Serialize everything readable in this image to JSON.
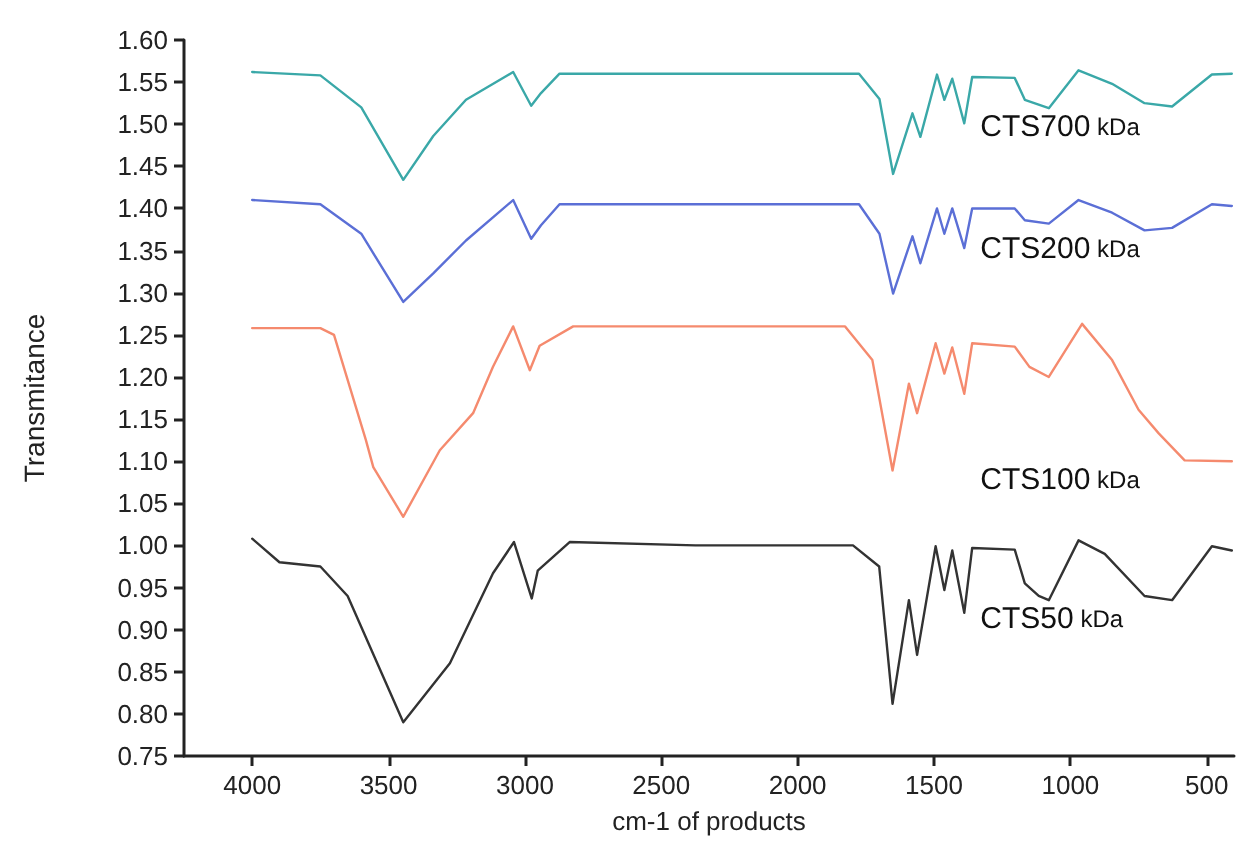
{
  "chart_data": {
    "type": "line",
    "xlabel": "cm-1 of products",
    "ylabel": "Transmitance",
    "xlim": [
      4250,
      400
    ],
    "xticks": [
      4000,
      3500,
      3000,
      2500,
      2000,
      1500,
      1000,
      500
    ],
    "ylim": [
      0.75,
      1.6
    ],
    "yticks": [
      0.75,
      {
        "value": 0.8,
        "label": "0.80"
      },
      0.85,
      {
        "value": 0.9,
        "label": "0.90"
      },
      0.95,
      {
        "value": 1.0,
        "label": "1.00"
      },
      1.05,
      {
        "value": 1.1,
        "label": "1.10"
      },
      1.15,
      {
        "value": 1.2,
        "label": "1.20"
      },
      1.25,
      {
        "value": 1.3,
        "label": "1.30"
      },
      1.35,
      {
        "value": 1.4,
        "label": "1.40"
      },
      1.45,
      {
        "value": 1.5,
        "label": "1.50"
      },
      1.55,
      {
        "value": 1.6,
        "label": "1.60"
      }
    ],
    "grid": false,
    "legend": false,
    "marker": "none",
    "line_style": "solid",
    "series": [
      {
        "name": "CTS700 kDa",
        "color": "#3aa8a8",
        "x": [
          4000,
          3750,
          3600,
          3446,
          3336,
          3216,
          3043,
          2977,
          2941,
          2873,
          2375,
          1775,
          1700,
          1650,
          1579,
          1550,
          1489,
          1462,
          1433,
          1389,
          1360,
          1204,
          1167,
          1079,
          970,
          847,
          728,
          627,
          481,
          408
        ],
        "values": [
          1.562,
          1.558,
          1.52,
          1.434,
          1.486,
          1.529,
          1.562,
          1.522,
          1.537,
          1.56,
          1.56,
          1.56,
          1.53,
          1.441,
          1.513,
          1.485,
          1.559,
          1.529,
          1.554,
          1.501,
          1.556,
          1.555,
          1.529,
          1.519,
          1.564,
          1.548,
          1.525,
          1.521,
          1.559,
          1.56
        ]
      },
      {
        "name": "CTS200 kDa",
        "color": "#5b6fd6",
        "x": [
          4000,
          3750,
          3600,
          3446,
          3336,
          3216,
          3043,
          2977,
          2941,
          2873,
          2375,
          1775,
          1700,
          1650,
          1579,
          1550,
          1489,
          1462,
          1433,
          1389,
          1360,
          1204,
          1167,
          1079,
          970,
          847,
          728,
          627,
          481,
          408
        ],
        "values": [
          1.41,
          1.405,
          1.37,
          1.289,
          1.323,
          1.362,
          1.41,
          1.364,
          1.38,
          1.405,
          1.405,
          1.405,
          1.37,
          1.299,
          1.367,
          1.335,
          1.4,
          1.37,
          1.4,
          1.353,
          1.4,
          1.4,
          1.386,
          1.382,
          1.41,
          1.395,
          1.374,
          1.377,
          1.405,
          1.403
        ]
      },
      {
        "name": "CTS100 kDa",
        "color": "#f58a6e",
        "x": [
          4000,
          3750,
          3700,
          3583,
          3556,
          3446,
          3312,
          3190,
          3117,
          3043,
          2982,
          2946,
          2823,
          1826,
          1726,
          1652,
          1592,
          1562,
          1494,
          1462,
          1433,
          1389,
          1360,
          1204,
          1150,
          1079,
          957,
          847,
          750,
          676,
          581,
          408
        ],
        "values": [
          1.258,
          1.258,
          1.25,
          1.125,
          1.093,
          1.034,
          1.113,
          1.157,
          1.212,
          1.26,
          1.208,
          1.237,
          1.26,
          1.26,
          1.22,
          1.089,
          1.192,
          1.157,
          1.24,
          1.204,
          1.235,
          1.18,
          1.24,
          1.236,
          1.212,
          1.2,
          1.263,
          1.22,
          1.161,
          1.133,
          1.101,
          1.1
        ]
      },
      {
        "name": "CTS50 kDa",
        "color": "#333333",
        "x": [
          4000,
          3900,
          3750,
          3650,
          3446,
          3275,
          3117,
          3040,
          2975,
          2953,
          2836,
          2375,
          1797,
          1701,
          1652,
          1592,
          1562,
          1494,
          1462,
          1433,
          1389,
          1360,
          1204,
          1167,
          1116,
          1079,
          970,
          874,
          728,
          627,
          481,
          408
        ],
        "values": [
          1.008,
          0.98,
          0.975,
          0.94,
          0.79,
          0.86,
          0.967,
          1.004,
          0.937,
          0.97,
          1.004,
          1.0,
          1.0,
          0.975,
          0.812,
          0.935,
          0.87,
          0.999,
          0.947,
          0.994,
          0.92,
          0.997,
          0.995,
          0.955,
          0.94,
          0.935,
          1.006,
          0.99,
          0.94,
          0.935,
          0.999,
          0.994
        ]
      }
    ]
  }
}
